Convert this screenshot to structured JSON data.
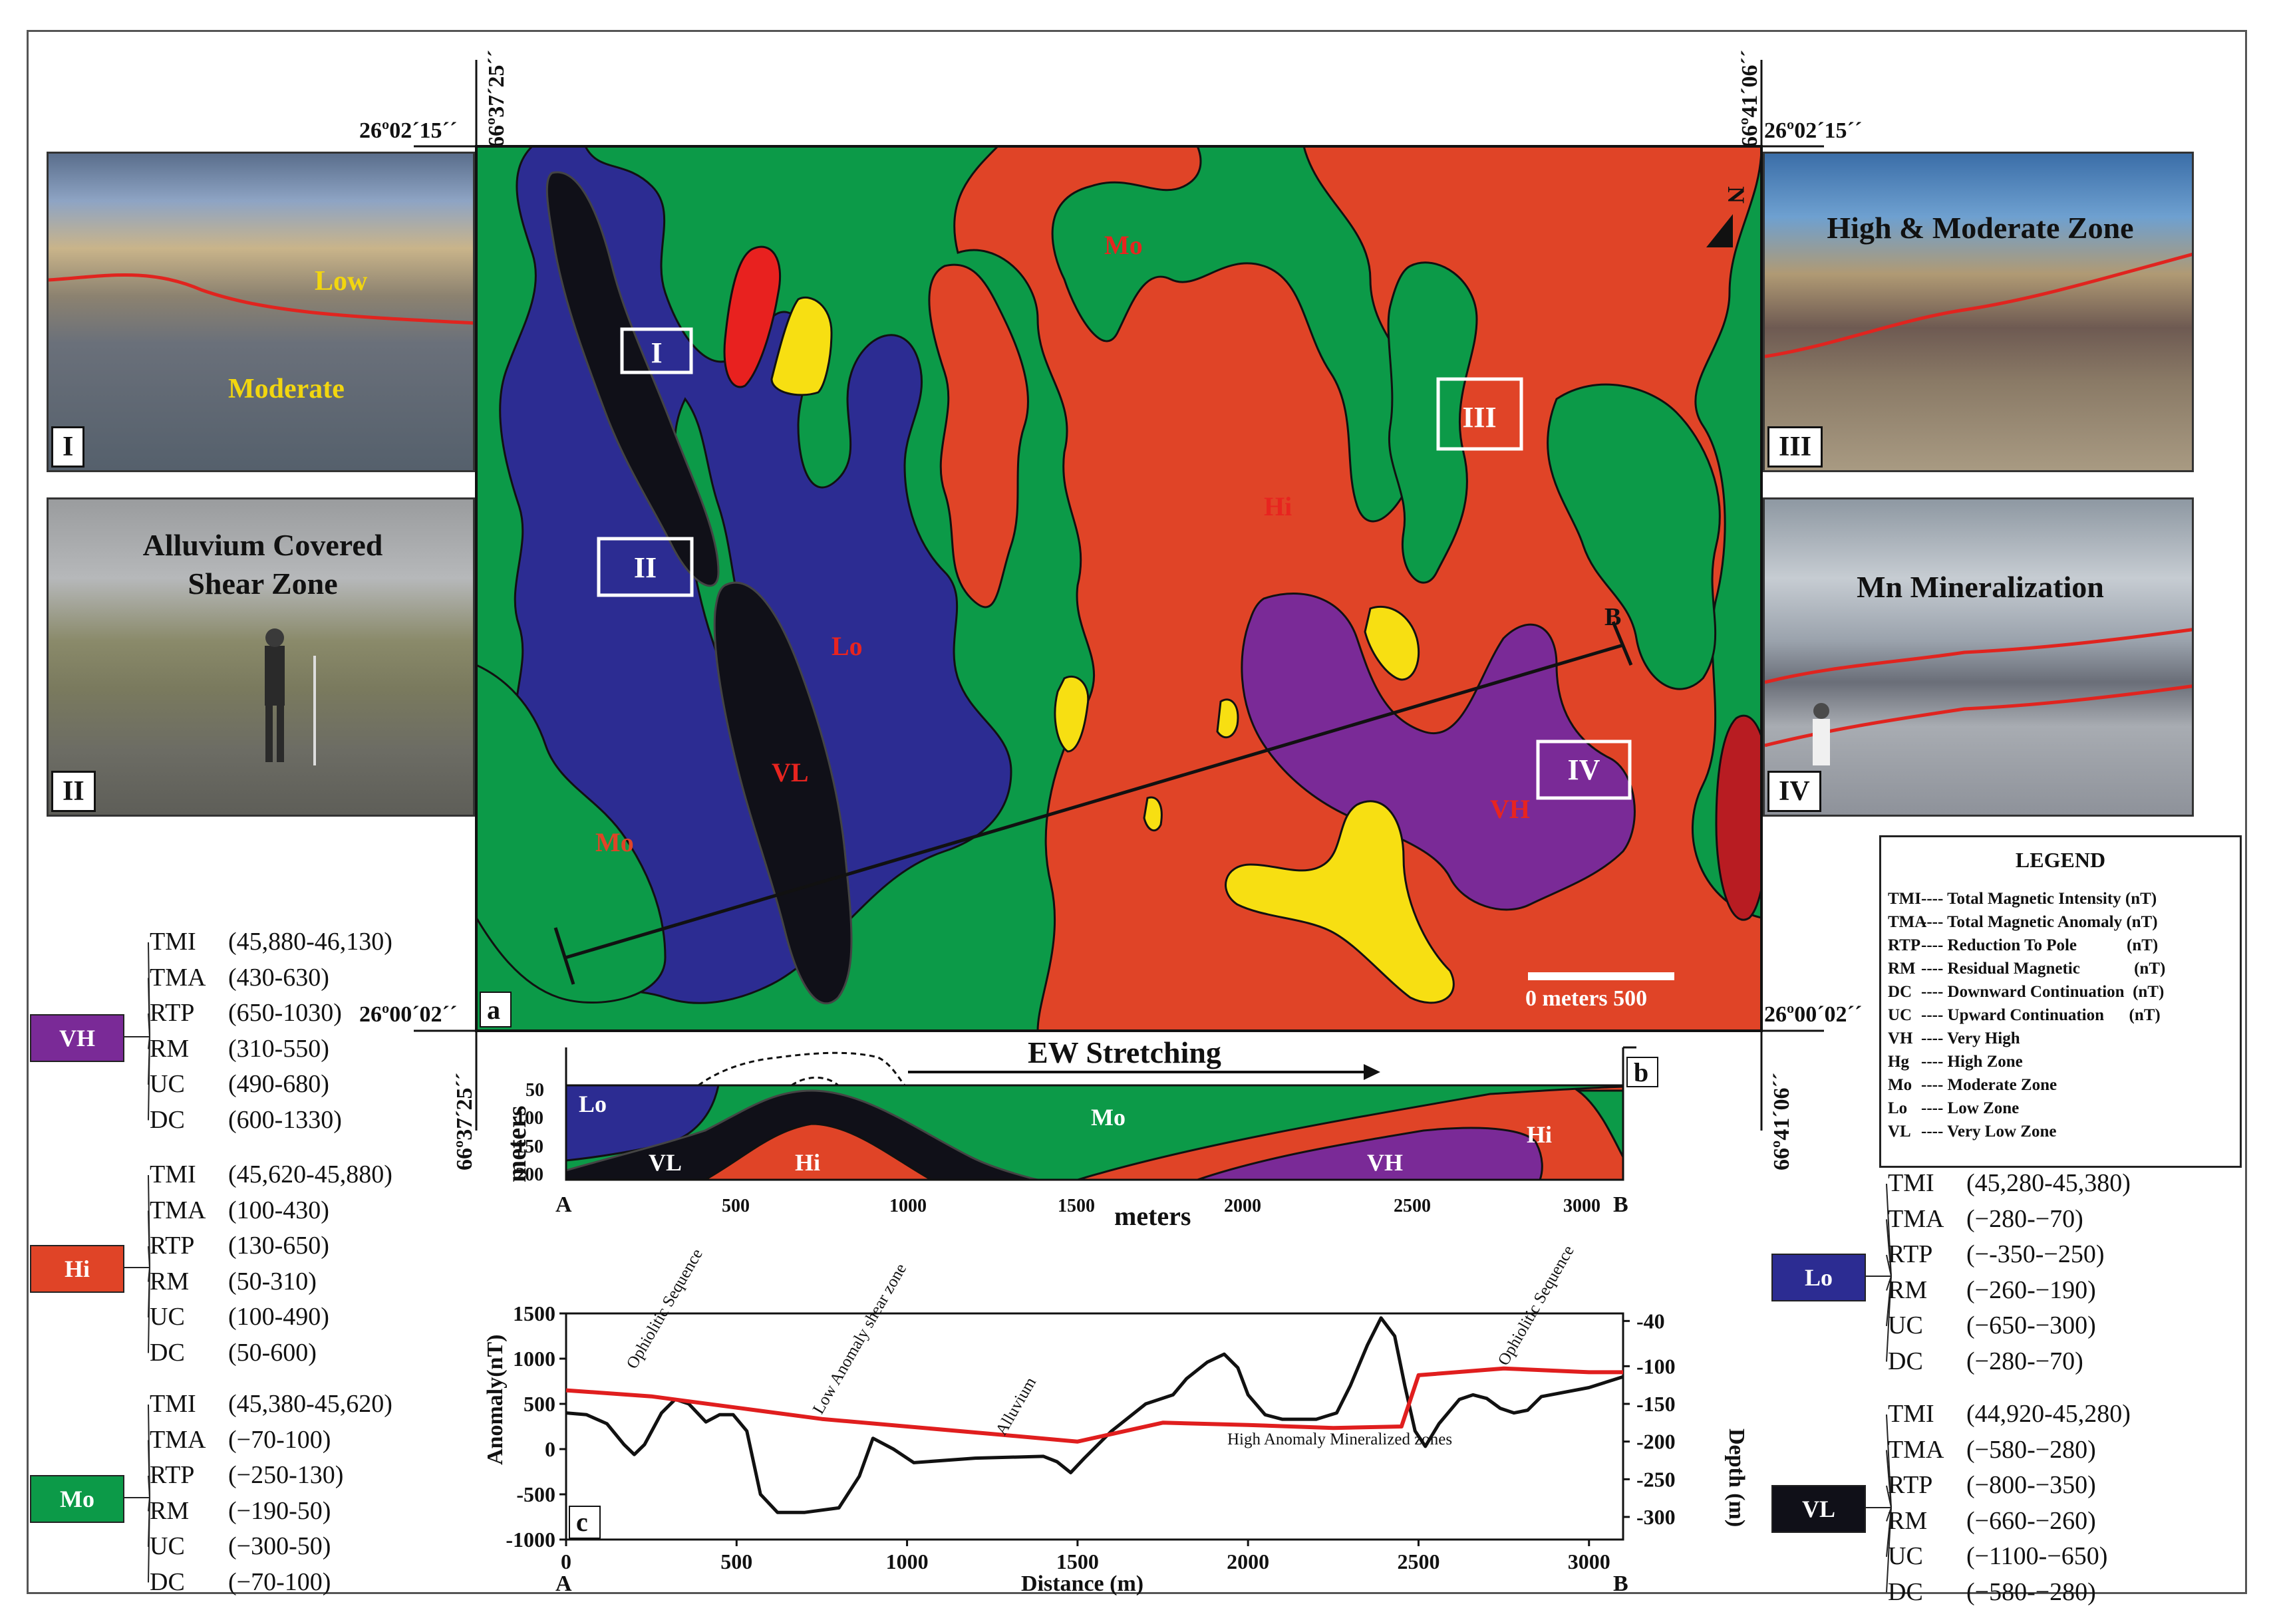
{
  "colors": {
    "very_high": "#7a2a97",
    "high": "#e04427",
    "moderate": "#0c9a48",
    "low": "#2c2c92",
    "very_low": "#101018",
    "yellow": "#f7df12",
    "red": "#e8211f",
    "profile_red": "#e01e1e"
  },
  "coordinates": {
    "top_left_lat": "26º02´15´´",
    "top_right_lat": "26º02´15´´",
    "bottom_left_lat": "26º00´02´´",
    "bottom_right_lat": "26º00´02´´",
    "top_left_lon": "66º37´25´´",
    "top_right_lon": "66º41´06´´",
    "bottom_left_lon": "66º37´25´´",
    "bottom_right_lon": "66º41´06´´"
  },
  "map": {
    "panel_label": "a",
    "zone_labels": {
      "mo_top": "Mo",
      "hi": "Hi",
      "lo": "Lo",
      "vl": "VL",
      "mo_left": "Mo",
      "vh": "VH"
    },
    "boxes": [
      "I",
      "II",
      "III",
      "IV"
    ],
    "profile_start": "A",
    "profile_end": "B",
    "north": "N",
    "scale_text": "0 meters 500"
  },
  "photos": [
    {
      "label": "I",
      "captions": [
        "Low",
        "Moderate"
      ]
    },
    {
      "label": "II",
      "captions": [
        "Alluvium Covered",
        "Shear Zone"
      ]
    },
    {
      "label": "III",
      "captions": [
        "High & Moderate Zone"
      ]
    },
    {
      "label": "IV",
      "captions": [
        "Mn Mineralization"
      ]
    }
  ],
  "legend": {
    "title": "LEGEND",
    "items": [
      {
        "abbr": "TMI",
        "text": "---- Total Magnetic Intensity (nT)"
      },
      {
        "abbr": "TMA",
        "text": "---- Total Magnetic Anomaly (nT)"
      },
      {
        "abbr": "RTP",
        "text": "---- Reduction To Pole            (nT)"
      },
      {
        "abbr": "RM",
        "text": "---- Residual Magnetic             (nT)"
      },
      {
        "abbr": "DC",
        "text": "---- Downward Continuation  (nT)"
      },
      {
        "abbr": "UC",
        "text": "---- Upward Continuation      (nT)"
      },
      {
        "abbr": "VH",
        "text": "---- Very High"
      },
      {
        "abbr": "Hg",
        "text": "---- High Zone"
      },
      {
        "abbr": "Mo",
        "text": "---- Moderate Zone"
      },
      {
        "abbr": "Lo",
        "text": "---- Low Zone"
      },
      {
        "abbr": "VL",
        "text": "---- Very Low Zone"
      }
    ]
  },
  "zones": [
    {
      "code": "VH",
      "params": [
        [
          "TMI",
          "(45,880-46,130)"
        ],
        [
          "TMA",
          "(430-630)"
        ],
        [
          "RTP",
          "(650-1030)"
        ],
        [
          "RM",
          "(310-550)"
        ],
        [
          "UC",
          "(490-680)"
        ],
        [
          "DC",
          "(600-1330)"
        ]
      ]
    },
    {
      "code": "Hi",
      "params": [
        [
          "TMI",
          "(45,620-45,880)"
        ],
        [
          "TMA",
          "(100-430)"
        ],
        [
          "RTP",
          "(130-650)"
        ],
        [
          "RM",
          "(50-310)"
        ],
        [
          "UC",
          "(100-490)"
        ],
        [
          "DC",
          "(50-600)"
        ]
      ]
    },
    {
      "code": "Mo",
      "params": [
        [
          "TMI",
          "(45,380-45,620)"
        ],
        [
          "TMA",
          "(−70-100)"
        ],
        [
          "RTP",
          "(−250-130)"
        ],
        [
          "RM",
          "(−190-50)"
        ],
        [
          "UC",
          "(−300-50)"
        ],
        [
          "DC",
          "(−70-100)"
        ]
      ]
    },
    {
      "code": "Lo",
      "params": [
        [
          "TMI",
          "(45,280-45,380)"
        ],
        [
          "TMA",
          "(−280-−70)"
        ],
        [
          "RTP",
          "(−-350-−250)"
        ],
        [
          "RM",
          "(−260-−190)"
        ],
        [
          "UC",
          "(−650-−300)"
        ],
        [
          "DC",
          "(−280-−70)"
        ]
      ]
    },
    {
      "code": "VL",
      "params": [
        [
          "TMI",
          "(44,920-45,280)"
        ],
        [
          "TMA",
          "(−580-−280)"
        ],
        [
          "RTP",
          "(−800-−350)"
        ],
        [
          "RM",
          "(−660-−260)"
        ],
        [
          "UC",
          "(−1100-−650)"
        ],
        [
          "DC",
          "(−580-−280)"
        ]
      ]
    }
  ],
  "cross_section": {
    "panel_label": "b",
    "title": "EW Stretching",
    "ylabel": "meters",
    "xlabel": "meters",
    "y_ticks": [
      "50",
      "100",
      "150",
      "200"
    ],
    "x_ticks": [
      "500",
      "1000",
      "1500",
      "2000",
      "2500",
      "3000"
    ],
    "start": "A",
    "end": "B",
    "zone_labels": {
      "lo": "Lo",
      "vl": "VL",
      "hi_left": "Hi",
      "mo": "Mo",
      "vh": "VH",
      "hi_right": "Hi"
    }
  },
  "chart_data": {
    "type": "line",
    "panel_label": "c",
    "xlabel": "Distance (m)",
    "ylabel": "Anomaly(nT)",
    "y2label": "Depth (m)",
    "xlim": [
      0,
      3100
    ],
    "ylim": [
      -1000,
      1500
    ],
    "y2lim": [
      -330,
      -30
    ],
    "x_ticks": [
      0,
      500,
      1000,
      1500,
      2000,
      2500,
      3000
    ],
    "y_ticks": [
      1500,
      1000,
      500,
      0,
      -500,
      -1000
    ],
    "y2_ticks": [
      -40,
      -100,
      -150,
      -200,
      -250,
      -300
    ],
    "x_start": "A",
    "x_end": "B",
    "anomaly": {
      "x": [
        0,
        60,
        120,
        170,
        200,
        230,
        280,
        320,
        360,
        410,
        450,
        490,
        530,
        570,
        620,
        700,
        800,
        860,
        900,
        960,
        1020,
        1200,
        1400,
        1440,
        1480,
        1520,
        1600,
        1700,
        1780,
        1820,
        1880,
        1930,
        1970,
        2000,
        2050,
        2100,
        2200,
        2260,
        2300,
        2350,
        2390,
        2430,
        2460,
        2490,
        2520,
        2560,
        2620,
        2660,
        2700,
        2740,
        2780,
        2820,
        2860,
        3000,
        3100
      ],
      "y": [
        400,
        380,
        280,
        50,
        -60,
        50,
        400,
        550,
        500,
        300,
        380,
        380,
        200,
        -500,
        -700,
        -700,
        -650,
        -300,
        120,
        0,
        -150,
        -100,
        -80,
        -140,
        -260,
        -100,
        200,
        500,
        600,
        780,
        960,
        1050,
        900,
        600,
        380,
        330,
        330,
        400,
        700,
        1150,
        1450,
        1250,
        700,
        200,
        30,
        280,
        550,
        600,
        560,
        450,
        400,
        430,
        580,
        680,
        800
      ]
    },
    "depth_profile": {
      "x": [
        0,
        250,
        500,
        750,
        1000,
        1250,
        1500,
        1750,
        2000,
        2250,
        2450,
        2500,
        2750,
        3000,
        3100
      ],
      "y": [
        -132,
        -140,
        -155,
        -170,
        -180,
        -190,
        -200,
        -175,
        -178,
        -182,
        -180,
        -112,
        -103,
        -108,
        -108
      ]
    },
    "annotations": [
      "Ophiolitic Sequence",
      "Low Anomaly shear zone",
      "Alluvium",
      "High Anomaly Mineralized zones",
      "Ophiolitic Sequence"
    ]
  }
}
